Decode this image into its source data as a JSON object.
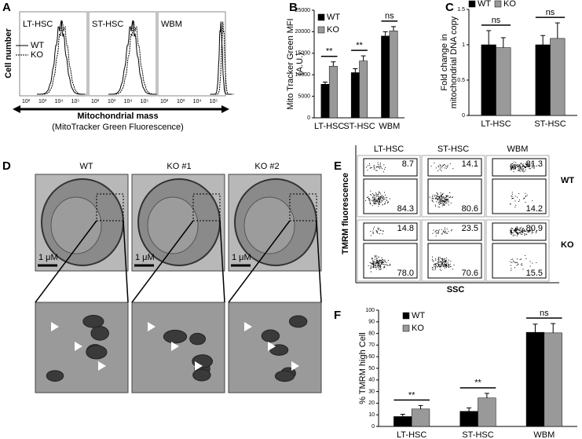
{
  "chart_data": [
    {
      "type": "bar",
      "y_label": [
        "Mito Tracker Green MFI",
        "(A.U.)"
      ],
      "categories": [
        "LT-HSC",
        "ST-HSC",
        "WBM"
      ],
      "series": [
        {
          "name": "WT",
          "color": "#000000",
          "values": [
            7800,
            10500,
            19000
          ],
          "errors": [
            500,
            900,
            1000
          ]
        },
        {
          "name": "KO",
          "color": "#999999",
          "values": [
            12000,
            13200,
            20200
          ],
          "errors": [
            1000,
            1200,
            1000
          ]
        }
      ],
      "significance": [
        "**",
        "**",
        "ns"
      ],
      "ylim": [
        0,
        25000
      ],
      "yticks": [
        0,
        5000,
        10000,
        15000,
        20000,
        25000
      ]
    },
    {
      "type": "bar",
      "y_label": [
        "Fold change in",
        "mitochondrial DNA copy"
      ],
      "categories": [
        "LT-HSC",
        "ST-HSC"
      ],
      "series": [
        {
          "name": "WT",
          "color": "#000000",
          "values": [
            1.0,
            1.0
          ],
          "errors": [
            0.2,
            0.13
          ]
        },
        {
          "name": "KO",
          "color": "#999999",
          "values": [
            0.96,
            1.09
          ],
          "errors": [
            0.14,
            0.22
          ]
        }
      ],
      "significance": [
        "ns",
        "ns"
      ],
      "ylim": [
        0,
        1.5
      ],
      "yticks": [
        0,
        0.5,
        1,
        1.5
      ]
    },
    {
      "type": "bar",
      "y_label": [
        "% TMRM high Cell"
      ],
      "categories": [
        "LT-HSC",
        "ST-HSC",
        "WBM"
      ],
      "series": [
        {
          "name": "WT",
          "color": "#000000",
          "values": [
            8.5,
            13,
            81
          ],
          "errors": [
            2,
            3,
            7
          ]
        },
        {
          "name": "KO",
          "color": "#999999",
          "values": [
            15,
            24.5,
            80.5
          ],
          "errors": [
            3,
            4,
            8
          ]
        }
      ],
      "significance": [
        "**",
        "**",
        "ns"
      ],
      "ylim": [
        0,
        100
      ],
      "yticks": [
        0,
        10,
        20,
        30,
        40,
        50,
        60,
        70,
        80,
        90,
        100
      ]
    }
  ],
  "panel_letters": [
    "A",
    "B",
    "C",
    "D",
    "E",
    "F"
  ],
  "histograms": {
    "titles": [
      "LT-HSC",
      "ST-HSC",
      "WBM"
    ],
    "y_label": "Cell number",
    "legend": [
      "WT",
      "KO"
    ],
    "x_ticks": [
      "10²",
      "10³",
      "10⁴",
      "10⁵"
    ],
    "x_label": "Mitochondrial mass",
    "x_sublabel": "(MitoTracker Green Fluorescence)"
  },
  "micrographs": {
    "columns": [
      "WT",
      "KO #1",
      "KO #2"
    ],
    "scale_bar": "1 μM"
  },
  "flow": {
    "columns": [
      "LT-HSC",
      "ST-HSC",
      "WBM"
    ],
    "rows": [
      "WT",
      "KO"
    ],
    "y_label": "TMRM fluorescence",
    "x_label": "SSC",
    "gates": [
      [
        [
          "8.7",
          "84.3"
        ],
        [
          "14.1",
          "80.6"
        ],
        [
          "81.3",
          "14.2"
        ]
      ],
      [
        [
          "14.8",
          "78.0"
        ],
        [
          "23.5",
          "70.6"
        ],
        [
          "80.9",
          "15.5"
        ]
      ]
    ]
  }
}
